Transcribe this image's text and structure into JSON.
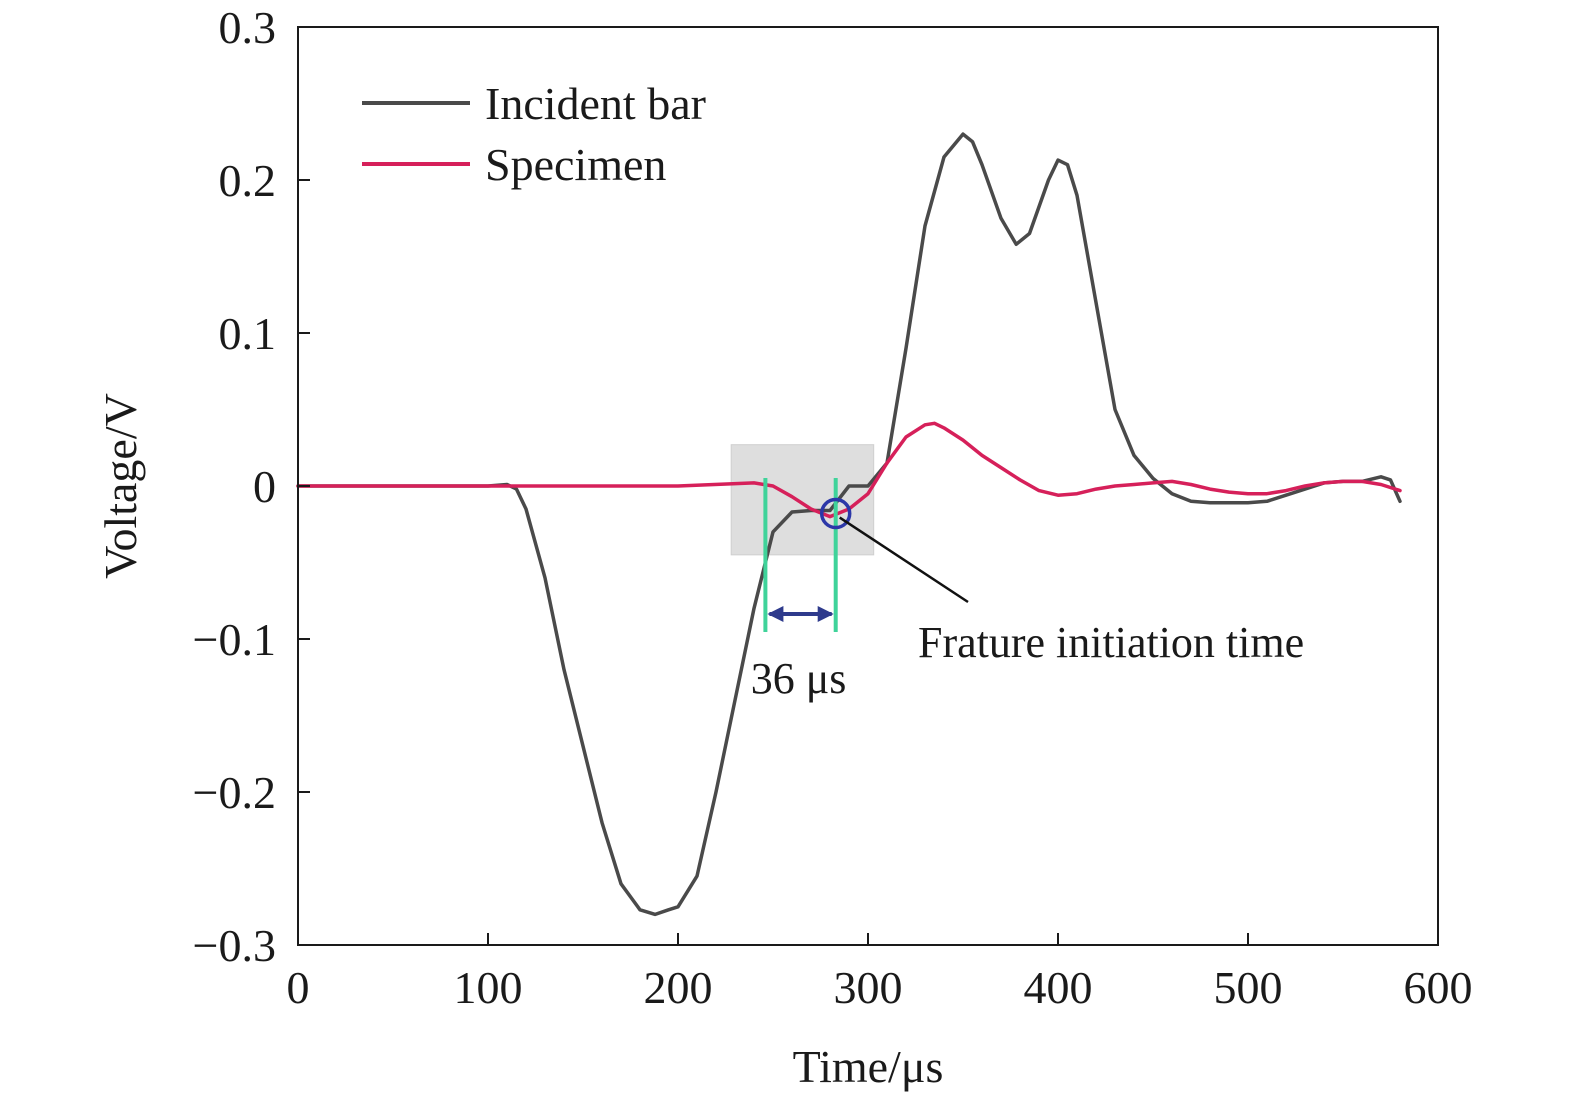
{
  "chart_data": {
    "type": "line",
    "xlabel": "Time/μs",
    "ylabel": "Voltage/V",
    "xlim": [
      0,
      600
    ],
    "ylim": [
      -0.3,
      0.3
    ],
    "xticks": [
      "0",
      "100",
      "200",
      "300",
      "400",
      "500",
      "600"
    ],
    "yticks": [
      "−0.3",
      "−0.2",
      "−0.1",
      "0",
      "0.1",
      "0.2",
      "0.3"
    ],
    "grid": false,
    "legend_position": "top-left",
    "series": [
      {
        "name": "Incident bar",
        "color": "#4a4a4a",
        "x": [
          0,
          50,
          100,
          110,
          115,
          120,
          130,
          140,
          150,
          160,
          170,
          180,
          188,
          195,
          200,
          210,
          220,
          230,
          240,
          250,
          260,
          270,
          280,
          290,
          300,
          310,
          320,
          330,
          340,
          350,
          355,
          360,
          370,
          378,
          385,
          395,
          400,
          405,
          410,
          420,
          430,
          440,
          450,
          460,
          470,
          480,
          490,
          500,
          510,
          520,
          530,
          540,
          550,
          560,
          570,
          575,
          580
        ],
        "y": [
          0,
          0,
          0,
          0.001,
          -0.002,
          -0.015,
          -0.06,
          -0.12,
          -0.17,
          -0.22,
          -0.26,
          -0.277,
          -0.28,
          -0.277,
          -0.275,
          -0.255,
          -0.2,
          -0.14,
          -0.08,
          -0.03,
          -0.017,
          -0.016,
          -0.016,
          0,
          0.0,
          0.015,
          0.09,
          0.17,
          0.215,
          0.23,
          0.225,
          0.21,
          0.175,
          0.158,
          0.165,
          0.2,
          0.213,
          0.21,
          0.19,
          0.12,
          0.05,
          0.02,
          0.005,
          -0.005,
          -0.01,
          -0.011,
          -0.011,
          -0.011,
          -0.01,
          -0.006,
          -0.002,
          0.002,
          0.003,
          0.003,
          0.006,
          0.004,
          -0.01
        ]
      },
      {
        "name": "Specimen",
        "color": "#d6205a",
        "x": [
          0,
          100,
          200,
          240,
          250,
          260,
          270,
          280,
          290,
          300,
          310,
          320,
          330,
          335,
          340,
          350,
          360,
          370,
          380,
          390,
          400,
          410,
          420,
          430,
          440,
          450,
          460,
          470,
          480,
          490,
          500,
          510,
          520,
          530,
          540,
          550,
          560,
          570,
          580
        ],
        "y": [
          0,
          0,
          0,
          0.002,
          0.0,
          -0.007,
          -0.015,
          -0.02,
          -0.015,
          -0.005,
          0.015,
          0.032,
          0.04,
          0.041,
          0.038,
          0.03,
          0.02,
          0.012,
          0.004,
          -0.003,
          -0.006,
          -0.005,
          -0.002,
          0.0,
          0.001,
          0.002,
          0.003,
          0.001,
          -0.002,
          -0.004,
          -0.005,
          -0.005,
          -0.003,
          0.0,
          0.002,
          0.003,
          0.003,
          0.001,
          -0.003
        ]
      }
    ],
    "annotations": {
      "interval_label": "36 μs",
      "interval_start": 246,
      "interval_end": 283,
      "fracture_label": "Frature initiation time",
      "fracture_time": 283,
      "fracture_voltage": -0.018,
      "highlight_x_range": [
        228,
        303
      ],
      "highlight_y_range": [
        -0.045,
        0.027
      ]
    }
  }
}
